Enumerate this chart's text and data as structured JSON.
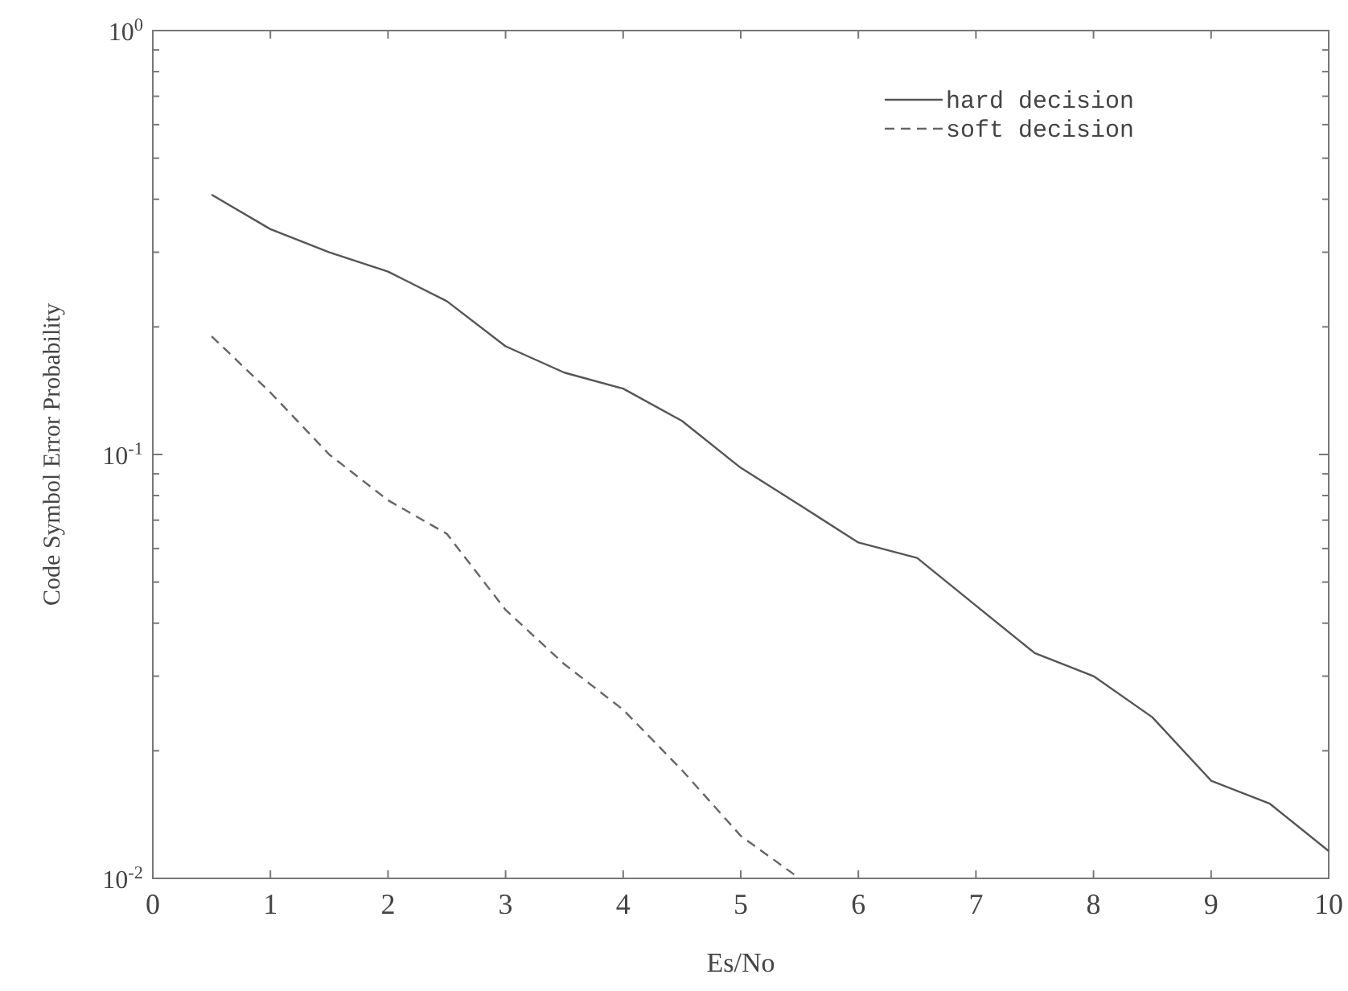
{
  "chart_data": {
    "type": "line",
    "xlabel": "Es/No",
    "ylabel": "Code Symbol Error Probability",
    "log": "y",
    "xlim": [
      0,
      10
    ],
    "ylim": [
      0.01,
      1
    ],
    "xticks": [
      0,
      1,
      2,
      3,
      4,
      5,
      6,
      7,
      8,
      9,
      10
    ],
    "yticks": [
      {
        "value": 0.01,
        "label": "10$^{-2}$"
      },
      {
        "value": 0.02,
        "label": null
      },
      {
        "value": 0.03,
        "label": null
      },
      {
        "value": 0.04,
        "label": null
      },
      {
        "value": 0.05,
        "label": null
      },
      {
        "value": 0.06,
        "label": null
      },
      {
        "value": 0.07,
        "label": null
      },
      {
        "value": 0.08,
        "label": null
      },
      {
        "value": 0.09,
        "label": null
      },
      {
        "value": 0.1,
        "label": "10$^{-1}$"
      },
      {
        "value": 0.2,
        "label": null
      },
      {
        "value": 0.3,
        "label": null
      },
      {
        "value": 0.4,
        "label": null
      },
      {
        "value": 0.5,
        "label": null
      },
      {
        "value": 0.6,
        "label": null
      },
      {
        "value": 0.7,
        "label": null
      },
      {
        "value": 0.8,
        "label": null
      },
      {
        "value": 0.9,
        "label": null
      },
      {
        "value": 1,
        "label": "10$^{0}$"
      }
    ],
    "grid": false,
    "legend": "top right",
    "marker": "none",
    "series": [
      {
        "name": "hard decision",
        "color": "#555555",
        "line_style": "solid",
        "x": [
          0.5,
          1,
          1.5,
          2,
          2.5,
          3,
          3.5,
          4,
          4.5,
          5,
          5.5,
          6,
          6.5,
          7,
          7.5,
          8,
          8.5,
          9,
          9.5,
          10
        ],
        "values": [
          0.41,
          0.34,
          0.3,
          0.27,
          0.23,
          0.18,
          0.156,
          0.143,
          0.12,
          0.093,
          0.076,
          0.062,
          0.057,
          0.044,
          0.034,
          0.03,
          0.024,
          0.017,
          0.015,
          0.0116
        ]
      },
      {
        "name": "soft decision",
        "color": "#666666",
        "line_style": "dashed",
        "x": [
          0.5,
          1,
          1.5,
          2,
          2.5,
          3,
          3.5,
          4,
          4.5,
          5,
          5.5
        ],
        "values": [
          0.19,
          0.14,
          0.1,
          0.078,
          0.065,
          0.043,
          0.032,
          0.025,
          0.018,
          0.0126,
          0.01
        ]
      }
    ]
  }
}
